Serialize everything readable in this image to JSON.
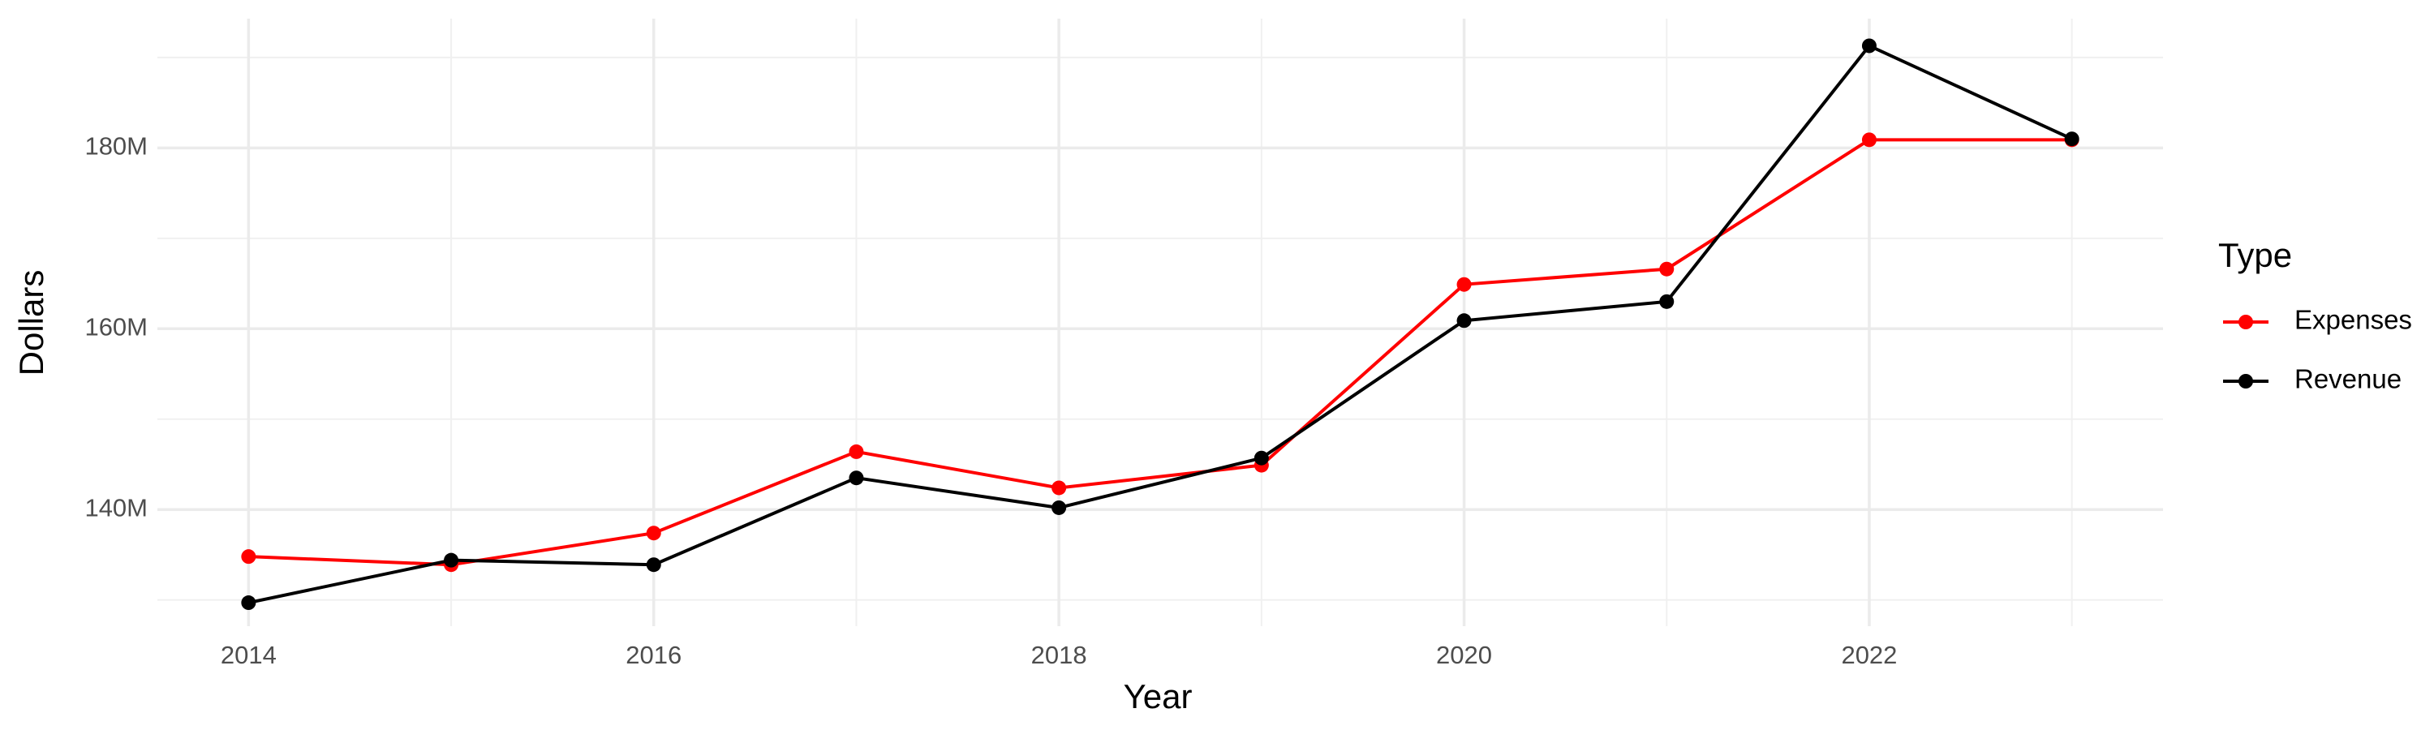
{
  "chart_data": {
    "type": "line",
    "x_label": "Year",
    "y_label": "Dollars",
    "legend_title": "Type",
    "x": [
      2014,
      2015,
      2016,
      2017,
      2018,
      2019,
      2020,
      2021,
      2022,
      2023
    ],
    "series": [
      {
        "name": "Expenses",
        "color": "#ff0000",
        "values": [
          134.8,
          133.9,
          137.4,
          146.4,
          142.4,
          144.9,
          164.9,
          166.6,
          180.9,
          180.9
        ]
      },
      {
        "name": "Revenue",
        "color": "#000000",
        "values": [
          129.7,
          134.4,
          133.9,
          143.5,
          140.2,
          145.7,
          160.9,
          163.0,
          191.3,
          181.0
        ]
      }
    ],
    "xlim": [
      2013.55,
      2023.45
    ],
    "xticks": [
      2014,
      2016,
      2018,
      2020,
      2022
    ],
    "ylim": [
      127.1,
      194.3
    ],
    "yticks": [
      {
        "value": 140,
        "label": "140M"
      },
      {
        "value": 160,
        "label": "160M"
      },
      {
        "value": 180,
        "label": "180M"
      }
    ],
    "grid": true,
    "legend_position": "right"
  }
}
